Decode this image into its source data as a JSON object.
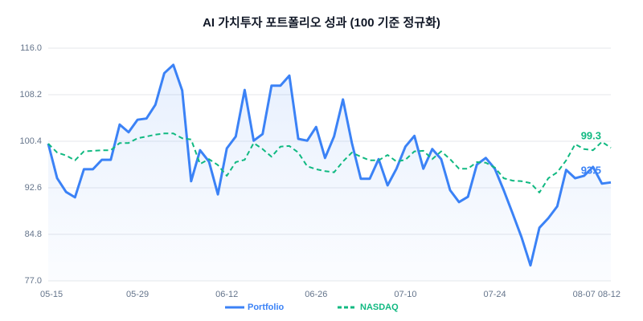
{
  "chart_data": {
    "type": "line",
    "title": "AI 가치투자 포트폴리오 성과 (100 기준 정규화)",
    "categories": [
      "05-15",
      null,
      null,
      null,
      null,
      null,
      null,
      null,
      null,
      null,
      "05-29",
      null,
      null,
      null,
      null,
      null,
      null,
      null,
      null,
      null,
      "06-12",
      null,
      null,
      null,
      null,
      null,
      null,
      null,
      null,
      null,
      "06-26",
      null,
      null,
      null,
      null,
      null,
      null,
      null,
      null,
      null,
      "07-10",
      null,
      null,
      null,
      null,
      null,
      null,
      null,
      null,
      null,
      "07-24",
      null,
      null,
      null,
      null,
      null,
      null,
      null,
      null,
      null,
      "08-07",
      null,
      null,
      "08-12"
    ],
    "series": [
      {
        "name": "Portfolio",
        "color": "#3b82f6",
        "area": true,
        "dashed": false,
        "label_last": true,
        "values": [
          100,
          94.2,
          91.9,
          91.0,
          95.7,
          95.7,
          97.3,
          97.3,
          103.2,
          101.9,
          104.0,
          104.2,
          106.5,
          111.8,
          113.2,
          108.9,
          93.7,
          98.9,
          97.0,
          91.5,
          99.2,
          101.2,
          109.0,
          100.5,
          101.6,
          109.7,
          109.7,
          111.4,
          100.8,
          100.5,
          102.8,
          97.6,
          101.2,
          107.4,
          100.1,
          94.1,
          94.1,
          97.4,
          93.0,
          95.8,
          99.5,
          101.3,
          95.8,
          99.1,
          97.4,
          92.2,
          90.2,
          91.1,
          96.5,
          97.6,
          95.8,
          92.2,
          88.3,
          84.3,
          79.6,
          85.9,
          87.5,
          89.5,
          95.6,
          94.2,
          94.6,
          96.1,
          93.3,
          93.5
        ]
      },
      {
        "name": "NASDAQ",
        "color": "#10b981",
        "area": false,
        "dashed": true,
        "label_last": true,
        "values": [
          100,
          98.5,
          98.0,
          97.2,
          98.7,
          98.8,
          98.9,
          98.9,
          100.1,
          100.1,
          100.9,
          101.2,
          101.5,
          101.7,
          101.7,
          100.9,
          100.7,
          96.6,
          97.4,
          96.4,
          94.6,
          96.9,
          97.3,
          100.1,
          99.1,
          97.8,
          99.5,
          99.6,
          98.5,
          96.2,
          95.7,
          95.4,
          95.2,
          97.0,
          98.5,
          97.8,
          97.2,
          97.2,
          98.1,
          97.0,
          97.3,
          98.7,
          98.8,
          97.4,
          98.7,
          97.4,
          95.8,
          95.8,
          96.9,
          96.8,
          96.0,
          94.2,
          93.8,
          93.7,
          93.4,
          91.8,
          94.2,
          95.2,
          97.2,
          99.9,
          99.1,
          98.9,
          100.3,
          99.3
        ]
      }
    ],
    "ylim": [
      77,
      116
    ],
    "yticks": [
      {
        "value": 77,
        "label": "77.0"
      },
      84.8,
      92.6,
      100.4,
      108.2,
      {
        "value": 116,
        "label": "116.0"
      }
    ],
    "grid": true,
    "legend": "bottom"
  }
}
